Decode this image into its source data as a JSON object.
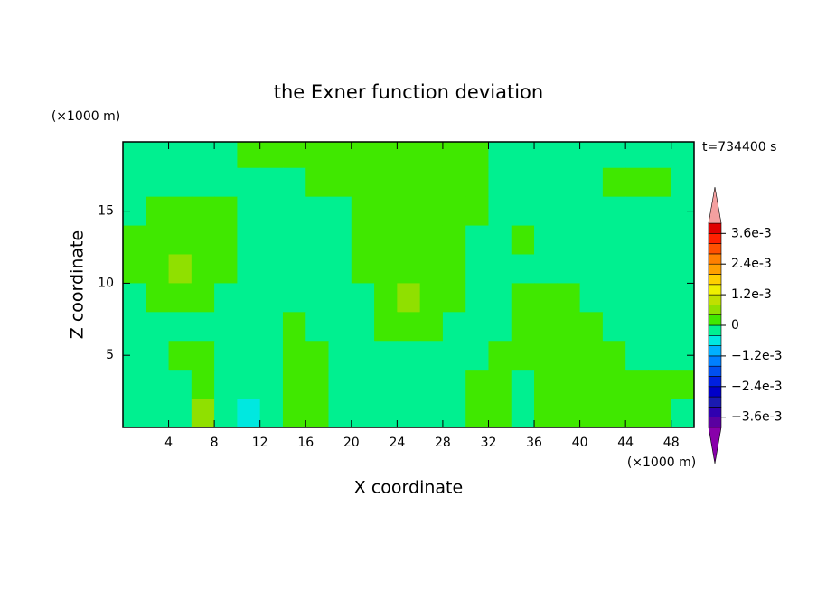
{
  "chart_data": {
    "type": "contour",
    "title": "the Exner function deviation",
    "x_label": "X coordinate",
    "y_label": "Z coordinate",
    "x_unit": "(×1000 m)",
    "y_unit": "(×1000 m)",
    "annotation": "t=734400 s",
    "xlim": [
      0,
      50
    ],
    "ylim": [
      0,
      19.8
    ],
    "xticks": [
      4,
      8,
      12,
      16,
      20,
      24,
      28,
      32,
      36,
      40,
      44,
      48
    ],
    "yticks": [
      5,
      10,
      15
    ],
    "x": [
      1,
      3,
      5,
      7,
      9,
      11,
      13,
      15,
      17,
      19,
      21,
      23,
      25,
      27,
      29,
      31,
      33,
      35,
      37,
      39,
      41,
      43,
      45,
      47,
      49
    ],
    "y": [
      19,
      17,
      15,
      13,
      11,
      9,
      7,
      5,
      3,
      1
    ],
    "z": [
      [
        -0.0002,
        -0.0002,
        -0.0002,
        -0.0002,
        -0.0002,
        0.0002,
        0.0002,
        0.0002,
        0.0002,
        0.0002,
        0.0002,
        0.0002,
        0.0002,
        0.0002,
        0.0002,
        0.0002,
        -0.0002,
        -0.0002,
        -0.0002,
        -0.0002,
        -0.0002,
        -0.0002,
        -0.0002,
        -0.0002,
        -0.0002
      ],
      [
        -0.0002,
        -0.0002,
        -0.0002,
        -0.0002,
        -0.0002,
        -0.0002,
        -0.0002,
        -0.0002,
        0.0002,
        0.0002,
        0.0002,
        0.0002,
        0.0002,
        0.0002,
        0.0002,
        0.0002,
        -0.0002,
        -0.0002,
        -0.0002,
        -0.0002,
        -0.0002,
        0.0002,
        0.0002,
        0.0002,
        -0.0002
      ],
      [
        -0.0002,
        0.0002,
        0.0002,
        0.0002,
        0.0002,
        -0.0002,
        -0.0002,
        -0.0002,
        -0.0002,
        -0.0002,
        0.0002,
        0.0002,
        0.0002,
        0.0002,
        0.0002,
        0.0002,
        -0.0002,
        -0.0002,
        -0.0002,
        -0.0002,
        -0.0002,
        -0.0002,
        -0.0002,
        -0.0002,
        -0.0002
      ],
      [
        0.0002,
        0.0002,
        0.0002,
        0.0002,
        0.0002,
        -0.0002,
        -0.0002,
        -0.0002,
        -0.0002,
        -0.0002,
        0.0002,
        0.0002,
        0.0002,
        0.0002,
        0.0002,
        -0.0002,
        -0.0002,
        0.0002,
        -0.0002,
        -0.0002,
        -0.0002,
        -0.0002,
        -0.0002,
        -0.0002,
        -0.0002
      ],
      [
        0.0002,
        0.0002,
        0.0006,
        0.0002,
        0.0002,
        -0.0002,
        -0.0002,
        -0.0002,
        -0.0002,
        -0.0002,
        0.0002,
        0.0002,
        0.0002,
        0.0002,
        0.0002,
        -0.0002,
        -0.0002,
        -0.0002,
        -0.0002,
        -0.0002,
        -0.0002,
        -0.0002,
        -0.0002,
        -0.0002,
        -0.0002
      ],
      [
        -0.0002,
        0.0002,
        0.0002,
        0.0002,
        -0.0002,
        -0.0002,
        -0.0002,
        -0.0002,
        -0.0002,
        -0.0002,
        -0.0002,
        0.0002,
        0.0006,
        0.0002,
        0.0002,
        -0.0002,
        -0.0002,
        0.0002,
        0.0002,
        0.0002,
        -0.0002,
        -0.0002,
        -0.0002,
        -0.0002,
        -0.0002
      ],
      [
        -0.0002,
        -0.0002,
        -0.0002,
        -0.0002,
        -0.0002,
        -0.0002,
        -0.0002,
        0.0002,
        -0.0002,
        -0.0002,
        -0.0002,
        0.0002,
        0.0002,
        0.0002,
        -0.0002,
        -0.0002,
        -0.0002,
        0.0002,
        0.0002,
        0.0002,
        0.0002,
        -0.0002,
        -0.0002,
        -0.0002,
        -0.0002
      ],
      [
        -0.0002,
        -0.0002,
        0.0002,
        0.0002,
        -0.0002,
        -0.0002,
        -0.0002,
        0.0002,
        0.0002,
        -0.0002,
        -0.0002,
        -0.0002,
        -0.0002,
        -0.0002,
        -0.0002,
        -0.0002,
        0.0002,
        0.0002,
        0.0002,
        0.0002,
        0.0002,
        0.0002,
        -0.0002,
        -0.0002,
        -0.0002
      ],
      [
        -0.0002,
        -0.0002,
        -0.0002,
        0.0002,
        -0.0002,
        -0.0002,
        -0.0002,
        0.0002,
        0.0002,
        -0.0002,
        -0.0002,
        -0.0002,
        -0.0002,
        -0.0002,
        -0.0002,
        0.0002,
        0.0002,
        -0.0002,
        0.0002,
        0.0002,
        0.0002,
        0.0002,
        0.0002,
        0.0002,
        0.0002
      ],
      [
        -0.0002,
        -0.0002,
        -0.0002,
        0.0006,
        -0.0002,
        -0.0006,
        -0.0002,
        0.0002,
        0.0002,
        -0.0002,
        -0.0002,
        -0.0002,
        -0.0002,
        -0.0002,
        -0.0002,
        0.0002,
        0.0002,
        -0.0002,
        0.0002,
        0.0002,
        0.0002,
        0.0002,
        0.0002,
        0.0002,
        -0.0002
      ]
    ],
    "levels": [
      -0.004,
      -0.0036,
      -0.0032,
      -0.0028,
      -0.0024,
      -0.002,
      -0.0016,
      -0.0012,
      -0.0008,
      -0.0004,
      0,
      0.0004,
      0.0008,
      0.0012,
      0.0016,
      0.002,
      0.0024,
      0.0028,
      0.0032,
      0.0036,
      0.004
    ],
    "colors": [
      "#5a00a0",
      "#3000b0",
      "#1a1ab0",
      "#0000c8",
      "#0020e0",
      "#0050f0",
      "#0080ff",
      "#00b0ff",
      "#00e8e0",
      "#00f090",
      "#40e800",
      "#90e000",
      "#c0e000",
      "#f0f000",
      "#ffd000",
      "#ffa000",
      "#ff8000",
      "#ff5000",
      "#ff2000",
      "#e00000"
    ],
    "over_color": "#f4a0a0",
    "under_color": "#8800aa",
    "colorbar_ticks": [
      {
        "value": 0.0036,
        "label": "3.6e-3"
      },
      {
        "value": 0.0024,
        "label": "2.4e-3"
      },
      {
        "value": 0.0012,
        "label": "1.2e-3"
      },
      0,
      {
        "value": -0.0012,
        "label": "−1.2e-3"
      },
      {
        "value": -0.0024,
        "label": "−2.4e-3"
      },
      {
        "value": -0.0036,
        "label": "−3.6e-3"
      }
    ]
  }
}
